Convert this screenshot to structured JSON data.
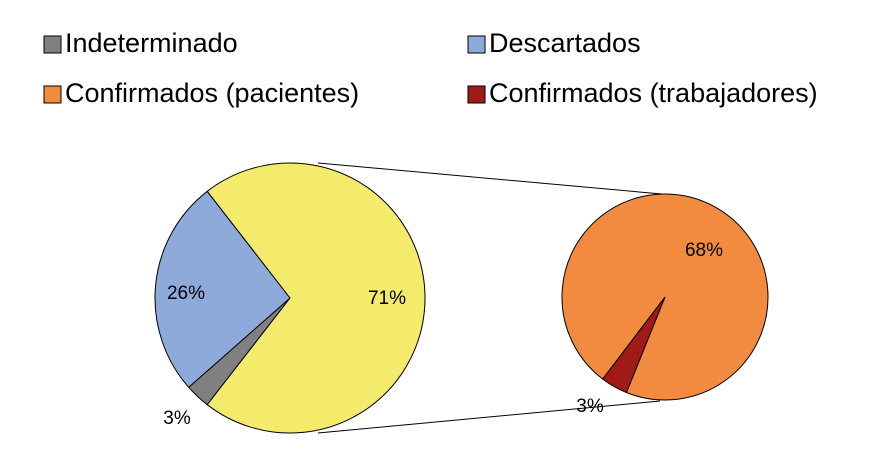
{
  "chart_data": {
    "type": "pie_of_pie",
    "main": {
      "categories": [
        "Indeterminado",
        "Descartados",
        null
      ],
      "values": [
        3,
        26,
        71
      ],
      "value_labels": [
        "3%",
        "26%",
        "71%"
      ],
      "colors": [
        "#808080",
        "#8eaadb",
        "#f4ea6c"
      ]
    },
    "secondary": {
      "categories": [
        "Confirmados (pacientes)",
        "Confirmados (trabajadores)"
      ],
      "values": [
        68,
        3
      ],
      "value_labels": [
        "68%",
        "3%"
      ],
      "colors": [
        "#f28b3f",
        "#a01a1a"
      ]
    }
  }
}
